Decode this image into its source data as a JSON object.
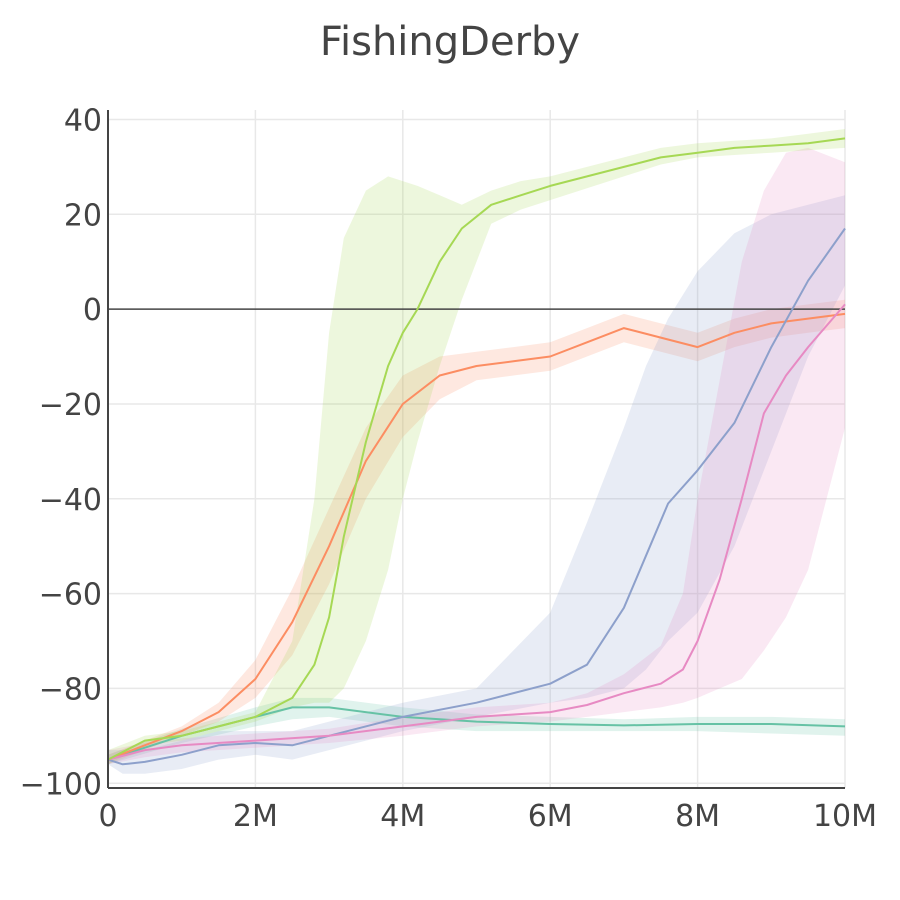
{
  "chart_data": {
    "type": "line",
    "title": "FishingDerby",
    "xlabel": "",
    "ylabel": "",
    "xlim": [
      0,
      10000000
    ],
    "ylim": [
      -101,
      42
    ],
    "x_ticks": [
      {
        "value": 0,
        "label": "0"
      },
      {
        "value": 2000000,
        "label": "2M"
      },
      {
        "value": 4000000,
        "label": "4M"
      },
      {
        "value": 6000000,
        "label": "6M"
      },
      {
        "value": 8000000,
        "label": "8M"
      },
      {
        "value": 10000000,
        "label": "10M"
      }
    ],
    "y_ticks": [
      {
        "value": 40,
        "label": "40"
      },
      {
        "value": 20,
        "label": "20"
      },
      {
        "value": 0,
        "label": "0"
      },
      {
        "value": -20,
        "label": "−20"
      },
      {
        "value": -40,
        "label": "−40"
      },
      {
        "value": -60,
        "label": "−60"
      },
      {
        "value": -80,
        "label": "−80"
      },
      {
        "value": -100,
        "label": "−100"
      }
    ],
    "grid": true,
    "legend": "none",
    "series": [
      {
        "color": "#66c2a5",
        "x": [
          0,
          1,
          2,
          2.5,
          3,
          4,
          5,
          6,
          7,
          8,
          9,
          10
        ],
        "y": [
          -95,
          -90,
          -86,
          -84,
          -84,
          -86,
          -87,
          -87.5,
          -87.8,
          -87.5,
          -87.5,
          -88
        ],
        "lower": [
          -96,
          -91.5,
          -88,
          -86.5,
          -86,
          -88,
          -89,
          -89,
          -89,
          -89,
          -89.5,
          -90
        ],
        "upper": [
          -94,
          -88.5,
          -84,
          -82,
          -82,
          -84,
          -85.5,
          -86,
          -86.5,
          -86,
          -86,
          -86.5
        ]
      },
      {
        "color": "#fc8d62",
        "x": [
          0,
          0.5,
          1,
          1.5,
          2,
          2.5,
          3,
          3.5,
          4,
          4.5,
          5,
          5.5,
          6,
          6.5,
          7,
          7.5,
          8,
          8.5,
          9,
          9.5,
          10
        ],
        "y": [
          -95,
          -92,
          -89,
          -85,
          -78,
          -66,
          -50,
          -32,
          -20,
          -14,
          -12,
          -11,
          -10,
          -7,
          -4,
          -6,
          -8,
          -5,
          -3,
          -2,
          -1
        ],
        "lower": [
          -96,
          -93,
          -90,
          -87,
          -82,
          -73,
          -58,
          -40,
          -27,
          -19,
          -15,
          -14,
          -13,
          -10,
          -7,
          -9,
          -11,
          -8,
          -6,
          -5,
          -4
        ],
        "upper": [
          -94,
          -91,
          -88,
          -83,
          -74,
          -59,
          -42,
          -25,
          -14,
          -10,
          -9,
          -8,
          -7,
          -4,
          -1,
          -3,
          -5,
          -2,
          0,
          1,
          2
        ]
      },
      {
        "color": "#8da0cb",
        "x": [
          0,
          0.2,
          0.5,
          1,
          1.5,
          2,
          2.5,
          3,
          4,
          5,
          6,
          6.5,
          7,
          7.3,
          7.6,
          8,
          8.5,
          9,
          9.5,
          10
        ],
        "y": [
          -95,
          -96,
          -95.5,
          -94,
          -92,
          -91.5,
          -92,
          -90,
          -86,
          -83,
          -79,
          -75,
          -63,
          -52,
          -41,
          -34,
          -24,
          -8,
          6,
          17
        ],
        "lower": [
          -96,
          -98,
          -98,
          -97,
          -95,
          -94,
          -95,
          -93,
          -89,
          -86,
          -83,
          -82,
          -80,
          -76,
          -70,
          -64,
          -50,
          -30,
          -10,
          5
        ],
        "upper": [
          -93,
          -93,
          -93,
          -91,
          -89,
          -89,
          -89,
          -87,
          -83,
          -80,
          -64,
          -45,
          -25,
          -12,
          -2,
          8,
          16,
          20,
          22,
          24
        ]
      },
      {
        "color": "#e78ac3",
        "x": [
          0,
          0.5,
          1,
          2,
          3,
          4,
          5,
          6,
          6.5,
          7,
          7.5,
          7.8,
          8,
          8.3,
          8.6,
          8.9,
          9.2,
          9.5,
          10
        ],
        "y": [
          -95,
          -93,
          -92,
          -91,
          -90,
          -88,
          -86,
          -85,
          -83.5,
          -81,
          -79,
          -76,
          -70,
          -57,
          -40,
          -22,
          -14,
          -8,
          1
        ],
        "lower": [
          -96,
          -94.5,
          -93.5,
          -92.5,
          -91.5,
          -90,
          -88,
          -87,
          -86,
          -85,
          -84,
          -83,
          -82,
          -80,
          -78,
          -72,
          -65,
          -55,
          -25
        ],
        "upper": [
          -93,
          -91.5,
          -90.5,
          -89.5,
          -88.5,
          -86,
          -84,
          -83,
          -81,
          -77,
          -71,
          -60,
          -40,
          -15,
          10,
          25,
          33,
          34,
          31
        ]
      },
      {
        "color": "#a6d854",
        "x": [
          0,
          0.5,
          1,
          1.5,
          2,
          2.5,
          2.8,
          3,
          3.2,
          3.5,
          3.8,
          4,
          4.2,
          4.5,
          4.8,
          5.2,
          5.6,
          6,
          6.5,
          7,
          7.5,
          8,
          8.5,
          9,
          9.5,
          10
        ],
        "y": [
          -95,
          -91,
          -90,
          -88,
          -86,
          -82,
          -75,
          -65,
          -48,
          -28,
          -12,
          -5,
          0,
          10,
          17,
          22,
          24,
          26,
          28,
          30,
          32,
          33,
          34,
          34.5,
          35,
          36
        ],
        "lower": [
          -96,
          -92,
          -91,
          -89,
          -87,
          -84,
          -83,
          -83,
          -80,
          -70,
          -55,
          -40,
          -28,
          -12,
          2,
          18,
          21,
          23,
          25.5,
          28,
          30.5,
          32,
          32.5,
          33,
          33.5,
          34
        ],
        "upper": [
          -93,
          -90,
          -89,
          -87,
          -85,
          -70,
          -40,
          -5,
          15,
          25,
          28,
          27,
          26,
          24,
          22,
          25,
          27,
          28,
          30,
          32,
          34,
          35,
          35.5,
          36,
          37,
          38
        ]
      }
    ]
  }
}
